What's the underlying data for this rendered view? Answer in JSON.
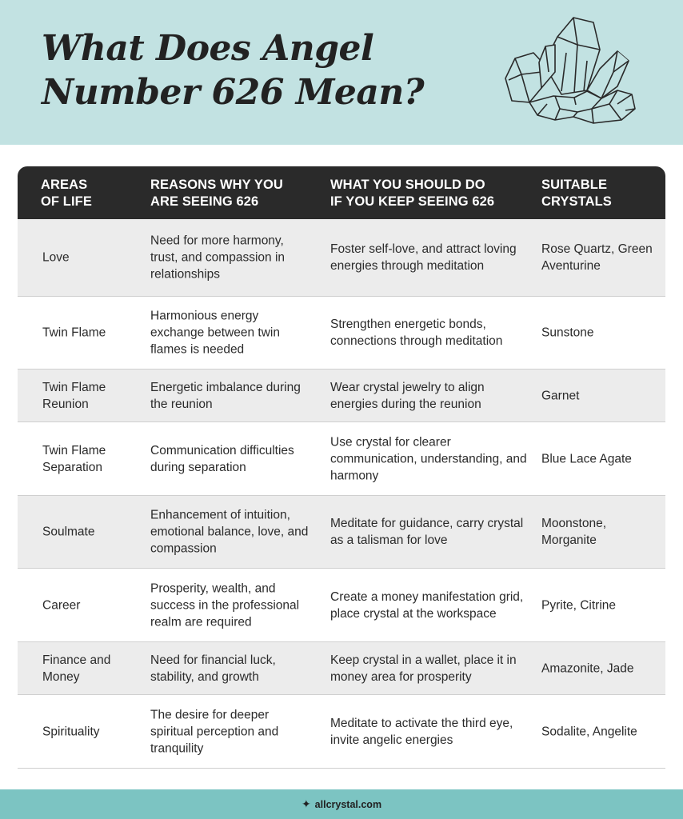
{
  "title": "What Does Angel Number 626 Mean?",
  "colors": {
    "header_bg": "#c2e2e2",
    "table_header_bg": "#2a2a2a",
    "row_shade": "#ececec",
    "footer_bg": "#7cc4c2"
  },
  "illustration": "crystal-cluster-icon",
  "table": {
    "headers": [
      "AREAS\nOF LIFE",
      "REASONS WHY YOU\nARE SEEING 626",
      "WHAT YOU SHOULD DO\nIF YOU KEEP SEEING 626",
      "SUITABLE\nCRYSTALS"
    ],
    "rows": [
      {
        "area": "Love",
        "reason": "Need for more harmony, trust, and compassion in relationships",
        "action": "Foster self-love, and attract loving energies through meditation",
        "crystals": "Rose Quartz, Green Aventurine"
      },
      {
        "area": "Twin Flame",
        "reason": "Harmonious energy exchange between twin flames is needed",
        "action": "Strengthen energetic bonds, connections through meditation",
        "crystals": "Sunstone"
      },
      {
        "area": "Twin Flame Reunion",
        "reason": "Energetic imbalance during the reunion",
        "action": "Wear crystal jewelry to align energies during the reunion",
        "crystals": "Garnet"
      },
      {
        "area": "Twin Flame Separation",
        "reason": "Communication difficulties during separation",
        "action": "Use crystal for clearer communication, understanding, and harmony",
        "crystals": "Blue Lace Agate"
      },
      {
        "area": "Soulmate",
        "reason": "Enhancement of intuition, emotional balance, love, and compassion",
        "action": "Meditate for guidance, carry crystal as a talisman for love",
        "crystals": "Moonstone, Morganite"
      },
      {
        "area": "Career",
        "reason": "Prosperity, wealth, and success in the professional realm are required",
        "action": "Create a money manifestation grid, place crystal at the workspace",
        "crystals": "Pyrite, Citrine"
      },
      {
        "area": "Finance and Money",
        "reason": "Need for financial luck, stability, and growth",
        "action": "Keep crystal in a wallet, place it in money area for prosperity",
        "crystals": "Amazonite, Jade"
      },
      {
        "area": "Spirituality",
        "reason": "The desire for deeper spiritual perception and tranquility",
        "action": "Meditate to activate the third eye, invite angelic energies",
        "crystals": "Sodalite, Angelite"
      }
    ]
  },
  "footer": {
    "icon": "sparkle-icon",
    "site": "allcrystal.com"
  }
}
